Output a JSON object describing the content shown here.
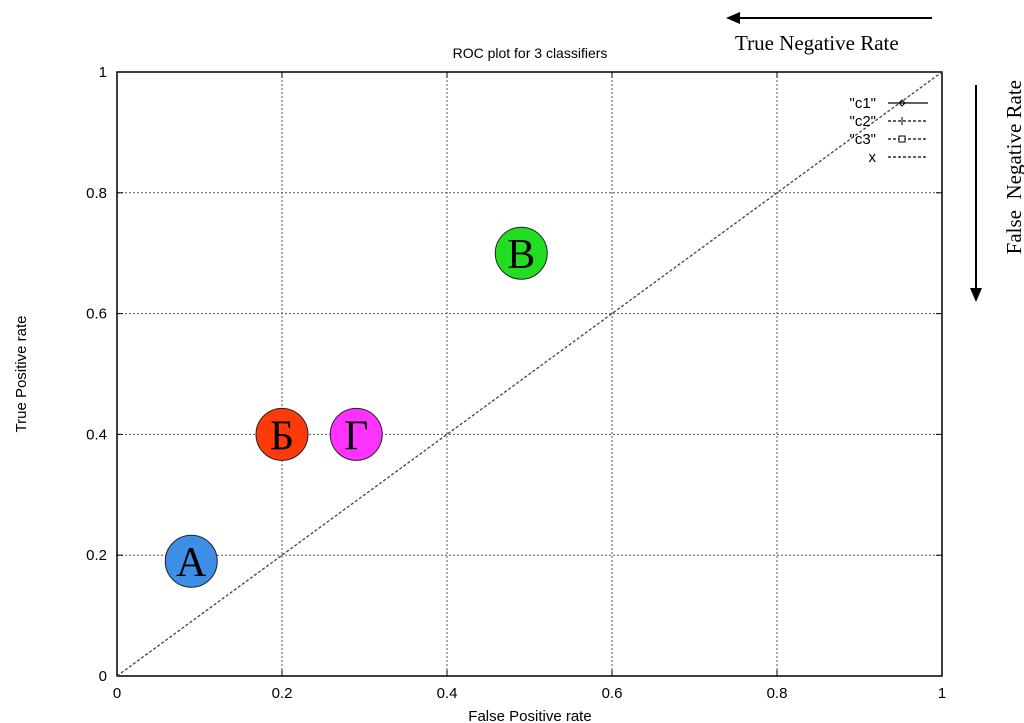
{
  "chart_data": {
    "type": "scatter",
    "title": "ROC plot for 3 classifiers",
    "xlabel": "False Positive rate",
    "ylabel": "True Positive rate",
    "xlim": [
      0,
      1
    ],
    "ylim": [
      0,
      1
    ],
    "x_ticks": [
      "0",
      "0.2",
      "0.4",
      "0.6",
      "0.8",
      "1"
    ],
    "y_ticks": [
      "0",
      "0.2",
      "0.4",
      "0.6",
      "0.8",
      "1"
    ],
    "grid": true,
    "legend_position": "top-right",
    "legend": [
      {
        "label": "\"c1\"",
        "style": "solid with diamond marker"
      },
      {
        "label": "\"c2\"",
        "style": "dashed with plus marker"
      },
      {
        "label": "\"c3\"",
        "style": "dashed with square marker"
      },
      {
        "label": "x",
        "style": "dashed"
      }
    ],
    "diagonal": {
      "label": "x",
      "x": [
        0,
        1
      ],
      "y": [
        0,
        1
      ]
    },
    "points": [
      {
        "label": "А",
        "x": 0.09,
        "y": 0.19,
        "color": "#3d8ee6"
      },
      {
        "label": "Б",
        "x": 0.2,
        "y": 0.4,
        "color": "#ff3a0a"
      },
      {
        "label": "В",
        "x": 0.49,
        "y": 0.7,
        "color": "#22dd22"
      },
      {
        "label": "Г",
        "x": 0.29,
        "y": 0.4,
        "color": "#ff33ff"
      }
    ],
    "annotations": {
      "top": "True Negative Rate",
      "right": "False  Negative Rate"
    }
  }
}
